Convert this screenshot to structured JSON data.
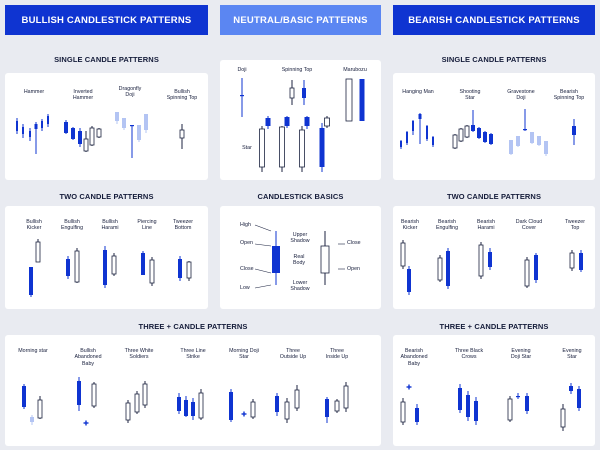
{
  "headers": {
    "bullish": "BULLISH CANDLESTICK PATTERNS",
    "neutral": "NEUTRAL/BASIC PATTERNS",
    "bearish": "BEARISH CANDLESTICK PATTERNS"
  },
  "sections": {
    "single_left": "SINGLE CANDLE PATTERNS",
    "single_right": "SINGLE CANDLE PATTERNS",
    "two_left": "TWO CANDLE PATTERNS",
    "basics": "CANDLESTICK BASICS",
    "two_right": "TWO CANDLE PATTERNS",
    "three_left": "THREE + CANDLE PATTERNS",
    "three_right": "THREE + CANDLE PATTERNS"
  },
  "labels": {
    "hammer": "Hammer",
    "inverted_hammer": "Inverted\nHammer",
    "dragonfly_doji": "Dragonfly\nDoji",
    "bullish_spinning_top": "Bullish\nSpinning Top",
    "doji": "Doji",
    "spinning_top": "Spinning Top",
    "marubozu": "Marubozu",
    "star": "Star",
    "hanging_man": "Hanging Man",
    "shooting_star": "Shooting\nStar",
    "gravestone_doji": "Gravestone\nDoji",
    "bearish_spinning_top": "Bearish\nSpinning Top",
    "bullish_kicker": "Bullish\nKicker",
    "bullish_engulfing": "Bullish\nEngulfing",
    "bullish_harami": "Bullish\nHarami",
    "piercing_line": "Piercing\nLine",
    "tweezer_bottom": "Tweezer\nBottom",
    "high": "High",
    "open_left": "Open",
    "close_left": "Close",
    "low": "Low",
    "upper_shadow": "Upper\nShadow",
    "real_body": "Real\nBody",
    "lower_shadow": "Lower\nShadow",
    "close_right": "Close",
    "open_right": "Open",
    "bearish_kicker": "Bearish\nKicker",
    "bearish_engulfing": "Bearish\nEngulfing",
    "bearish_harami": "Bearish\nHarami",
    "dark_cloud_cover": "Dark Cloud\nCover",
    "tweezer_top": "Tweezer\nTop",
    "morning_star": "Morning star",
    "bullish_abandoned_baby": "Bullish\nAbandoned\nBaby",
    "three_white_soldiers": "Three White\nSoldiers",
    "three_line_strike": "Three Line\nStrike",
    "morning_doji_star": "Morning Doji\nStar",
    "three_outside_up": "Three\nOutside Up",
    "three_inside_up": "Three\nInside Up",
    "bearish_abandoned_baby": "Bearish\nAbandoned\nBaby",
    "three_black_crows": "Three Black\nCrows",
    "evening_doji_star": "Evening\nDoji Star",
    "evening_star": "Evening\nStar"
  },
  "colors": {
    "blue": "#0f34d1",
    "light_blue": "#5b86f2",
    "pale_blue": "#b3c4f3",
    "outline": "#1c2340",
    "background": "#e9ebf1",
    "text": "#151c3a"
  }
}
